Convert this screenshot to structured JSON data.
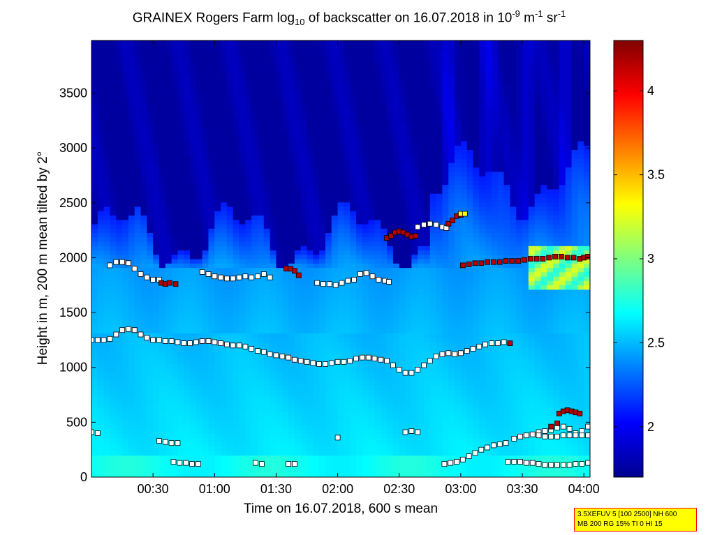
{
  "chart_data": {
    "type": "heatmap",
    "title": {
      "prefix": "GRAINEX Rogers Farm log",
      "log_base": "10",
      "middle": " of backscatter on 16.07.2018 in 10",
      "exp1": "-9",
      "unit_m": " m",
      "exp2": "-1",
      "unit_sr": " sr",
      "exp3": "-1"
    },
    "xlabel": "Time on 16.07.2018, 600 s mean",
    "ylabel": "Height in m, 200 m mean tilted by 2°",
    "x_ticks": [
      "00:30",
      "01:00",
      "01:30",
      "02:00",
      "02:30",
      "03:00",
      "03:30",
      "04:00"
    ],
    "x_tick_minutes": [
      30,
      60,
      90,
      120,
      150,
      180,
      210,
      240
    ],
    "xlim_minutes": [
      0,
      243
    ],
    "y_ticks": [
      0,
      500,
      1000,
      1500,
      2000,
      2500,
      3000,
      3500
    ],
    "ylim": [
      0,
      3980
    ],
    "colorbar": {
      "range": [
        1.7,
        4.3
      ],
      "ticks": [
        2,
        2.5,
        3,
        3.5,
        4
      ],
      "tick_labels": [
        "2",
        "2.5",
        "3",
        "3.5",
        "4"
      ],
      "colormap": "jet"
    },
    "field_description_levels": [
      {
        "height_max": 300,
        "value": 2.75
      },
      {
        "height_max": 1300,
        "value": 2.6
      },
      {
        "height_max": 1900,
        "value": 2.45
      },
      {
        "height_max": 2500,
        "value": 2.15
      },
      {
        "height_max": 3980,
        "value": 1.75
      }
    ],
    "series": [
      {
        "layer": "upper_layer_segments",
        "segments": [
          {
            "t": [
              9,
              12,
              15,
              18,
              21,
              24,
              27,
              30,
              33
            ],
            "h": [
              1930,
              1960,
              1960,
              1950,
              1900,
              1850,
              1820,
              1800,
              1800
            ]
          },
          {
            "t": [
              34,
              36,
              38,
              41
            ],
            "h": [
              1770,
              1760,
              1770,
              1760
            ],
            "color": "#b30000"
          },
          {
            "t": [
              54,
              57,
              60,
              63,
              66,
              69,
              72,
              75,
              78,
              81,
              84,
              87
            ],
            "h": [
              1870,
              1850,
              1830,
              1820,
              1810,
              1810,
              1820,
              1830,
              1820,
              1830,
              1850,
              1820
            ]
          },
          {
            "t": [
              95,
              97,
              99,
              101
            ],
            "h": [
              1900,
              1900,
              1880,
              1840
            ],
            "color": "#b30000"
          },
          {
            "t": [
              110,
              113,
              116,
              119,
              122,
              125,
              128,
              131,
              134,
              137,
              140,
              143,
              145
            ],
            "h": [
              1770,
              1760,
              1760,
              1750,
              1770,
              1790,
              1800,
              1850,
              1860,
              1830,
              1800,
              1790,
              1780
            ]
          },
          {
            "t": [
              144,
              146,
              148,
              150,
              152,
              154,
              156,
              158
            ],
            "h": [
              2180,
              2200,
              2230,
              2240,
              2230,
              2210,
              2190,
              2200
            ],
            "color": "#b30000"
          },
          {
            "t": [
              159,
              162,
              165,
              168,
              171,
              173
            ],
            "h": [
              2280,
              2300,
              2310,
              2300,
              2280,
              2270
            ]
          },
          {
            "t": [
              174,
              176,
              178,
              180
            ],
            "h": [
              2310,
              2340,
              2380,
              2390
            ],
            "color": "#b30000"
          },
          {
            "t": [
              180,
              182
            ],
            "h": [
              2400,
              2400
            ],
            "color": "#ffff00"
          },
          {
            "t": [
              181,
              184,
              187,
              190,
              193,
              196,
              199,
              202,
              205,
              208,
              211,
              214,
              217,
              220,
              223,
              226,
              229,
              232,
              235,
              238,
              240,
              242
            ],
            "h": [
              1930,
              1940,
              1950,
              1950,
              1960,
              1960,
              1960,
              1970,
              1970,
              1970,
              1980,
              1990,
              1990,
              1990,
              2000,
              2010,
              2010,
              2000,
              2000,
              1990,
              2000,
              2010
            ],
            "color": "#b30000"
          }
        ]
      },
      {
        "layer": "middle_layer",
        "segments": [
          {
            "t": [
              0,
              3,
              6,
              9,
              12,
              15,
              18,
              21,
              24,
              27,
              30,
              33,
              36,
              39,
              42,
              45,
              48,
              51,
              54,
              57,
              60,
              63,
              66,
              69,
              72,
              75,
              78,
              81,
              84,
              87,
              90,
              93,
              96,
              99,
              102,
              105,
              108,
              111,
              114,
              117,
              120,
              123,
              126,
              129,
              132,
              135,
              138,
              141,
              144,
              147,
              150,
              153,
              156,
              159,
              162,
              165,
              168,
              171,
              174,
              177,
              180,
              183,
              186,
              189,
              192,
              195,
              198,
              201
            ],
            "h": [
              1250,
              1250,
              1250,
              1260,
              1300,
              1340,
              1350,
              1340,
              1300,
              1270,
              1250,
              1250,
              1240,
              1240,
              1230,
              1220,
              1220,
              1230,
              1240,
              1240,
              1230,
              1220,
              1210,
              1200,
              1200,
              1190,
              1170,
              1150,
              1140,
              1120,
              1110,
              1100,
              1090,
              1070,
              1060,
              1050,
              1040,
              1030,
              1030,
              1040,
              1050,
              1050,
              1060,
              1080,
              1090,
              1090,
              1080,
              1070,
              1060,
              1020,
              980,
              950,
              950,
              980,
              1020,
              1060,
              1100,
              1120,
              1130,
              1120,
              1130,
              1150,
              1170,
              1190,
              1210,
              1220,
              1220,
              1230
            ]
          },
          {
            "t": [
              204
            ],
            "h": [
              1220
            ],
            "color": "#b30000"
          }
        ]
      },
      {
        "layer": "lower_layer_segments",
        "segments": [
          {
            "t": [
              0,
              3
            ],
            "h": [
              410,
              400
            ]
          },
          {
            "t": [
              33,
              36,
              39,
              42
            ],
            "h": [
              330,
              320,
              310,
              310
            ]
          },
          {
            "t": [
              40,
              43,
              46,
              49,
              52
            ],
            "h": [
              140,
              130,
              130,
              120,
              120
            ]
          },
          {
            "t": [
              80,
              83
            ],
            "h": [
              130,
              120
            ]
          },
          {
            "t": [
              96,
              99
            ],
            "h": [
              120,
              120
            ]
          },
          {
            "t": [
              120
            ],
            "h": [
              360
            ]
          },
          {
            "t": [
              153,
              156,
              159
            ],
            "h": [
              410,
              420,
              410
            ]
          },
          {
            "t": [
              172,
              175,
              178,
              181,
              184,
              187,
              190,
              193,
              196,
              199,
              202
            ],
            "h": [
              120,
              130,
              140,
              160,
              190,
              220,
              250,
              270,
              290,
              300,
              310
            ]
          },
          {
            "t": [
              203,
              206,
              209,
              212,
              215,
              218,
              221,
              224,
              227,
              230,
              233,
              236,
              239,
              242
            ],
            "h": [
              140,
              140,
              140,
              130,
              130,
              120,
              110,
              110,
              110,
              110,
              110,
              120,
              120,
              130
            ]
          },
          {
            "t": [
              206,
              209,
              212,
              215,
              218,
              221,
              224,
              227,
              230,
              233,
              236,
              239,
              242
            ],
            "h": [
              350,
              370,
              380,
              390,
              410,
              420,
              430,
              450,
              460,
              440,
              400,
              420,
              460
            ]
          },
          {
            "t": [
              218,
              221,
              224,
              227,
              230,
              233,
              236,
              239,
              242
            ],
            "h": [
              380,
              370,
              370,
              370,
              380,
              380,
              380,
              380,
              380
            ]
          },
          {
            "t": [
              224,
              227
            ],
            "h": [
              460,
              490
            ],
            "color": "#b30000"
          },
          {
            "t": [
              228,
              230,
              232,
              234,
              236,
              238
            ],
            "h": [
              580,
              600,
              610,
              600,
              590,
              580
            ],
            "color": "#b30000"
          }
        ]
      }
    ]
  },
  "info_box": {
    "line1": "3.5XEFUV 5 [100 2500] NH 600",
    "line2": "MB 200 RG 15% TI 0 HI 15"
  }
}
